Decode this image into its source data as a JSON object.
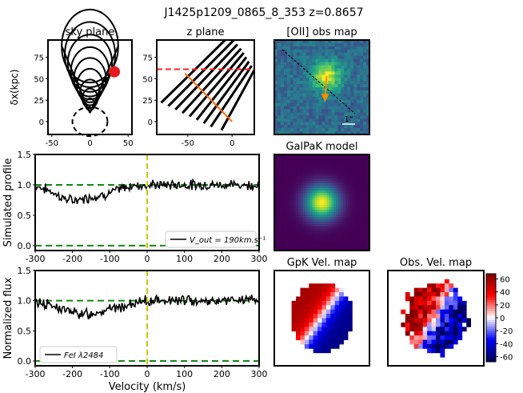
{
  "figure": {
    "title": "J1425p1209_0865_8_353 z=0.8657"
  },
  "chart_data": [
    {
      "id": "sky",
      "type": "scatter",
      "title": "sky plane",
      "ylabel": "δx(kpc)",
      "xlim": [
        -55,
        55
      ],
      "ylim": [
        -15,
        95
      ],
      "xticks": [
        -50,
        0,
        50
      ],
      "yticks": [
        0,
        25,
        50,
        75
      ],
      "cone_apex": [
        0,
        10
      ],
      "ellipse_centers_y": [
        88,
        78,
        68,
        58,
        50,
        42,
        34,
        27,
        20
      ],
      "ellipse_half_widths": [
        37,
        33,
        29,
        25,
        21,
        17,
        13,
        10,
        6
      ],
      "dashed_ellipse": {
        "cx": 0,
        "cy": 0,
        "rx": 23,
        "ry": 17
      },
      "galaxy_marker": {
        "x": 32,
        "y": 58,
        "r": 7,
        "color": "#e41a1c"
      }
    },
    {
      "id": "z",
      "type": "line",
      "title": "z plane",
      "xlim": [
        -85,
        25
      ],
      "ylim": [
        -15,
        95
      ],
      "xticks": [
        -50,
        0
      ],
      "yticks": [
        0,
        25,
        50,
        75
      ],
      "stripes": [
        [
          [
            -80,
            22
          ],
          [
            -3,
            100
          ]
        ],
        [
          [
            -72,
            18
          ],
          [
            2,
            95
          ]
        ],
        [
          [
            -64,
            14
          ],
          [
            6,
            90
          ]
        ],
        [
          [
            -56,
            10
          ],
          [
            10,
            85
          ]
        ],
        [
          [
            -48,
            6
          ],
          [
            13,
            80
          ]
        ],
        [
          [
            -40,
            2
          ],
          [
            16,
            75
          ]
        ],
        [
          [
            -32,
            -2
          ],
          [
            19,
            70
          ]
        ],
        [
          [
            -24,
            -6
          ],
          [
            22,
            65
          ]
        ],
        [
          [
            -12,
            -10
          ],
          [
            25,
            60
          ]
        ]
      ],
      "los": {
        "x1": -53,
        "y1": 56,
        "x2": 0,
        "y2": 0,
        "color": "#ff6a00"
      },
      "red_dashed_y": 61
    },
    {
      "id": "obs_map",
      "type": "heatmap",
      "title": "[OII] obs map",
      "scale_label": "1\"",
      "grid": 30,
      "center": [
        16,
        11
      ],
      "sigma": 3.2,
      "arrow_color": "#ff8c00"
    },
    {
      "id": "model",
      "type": "heatmap",
      "title": "GalPaK model",
      "center": [
        0.5,
        0.5
      ],
      "sigma": 0.12
    },
    {
      "id": "profile",
      "type": "line",
      "xlabel": "",
      "ylabel": "Simulated profile",
      "xlim": [
        -300,
        300
      ],
      "ylim": [
        -0.08,
        1.5
      ],
      "xticks": [
        -300,
        -200,
        -100,
        0,
        100,
        200,
        300
      ],
      "yticks": [
        0.0,
        0.5,
        1.0,
        1.5
      ],
      "hlines": [
        1.0,
        0.0
      ],
      "vline": 0,
      "legend": "V_out = 190km.s⁻¹",
      "legend_location": "bottom-right",
      "absorption": [
        {
          "center": -200,
          "width": 45,
          "depth": 0.25
        },
        {
          "center": -110,
          "width": 35,
          "depth": 0.12
        }
      ],
      "noise": 0.07,
      "seed": 7
    },
    {
      "id": "flux",
      "type": "line",
      "xlabel": "Velocity (km/s)",
      "ylabel": "Normalized flux",
      "xlim": [
        -300,
        300
      ],
      "ylim": [
        -0.08,
        1.5
      ],
      "xticks": [
        -300,
        -200,
        -100,
        0,
        100,
        200,
        300
      ],
      "yticks": [
        0.0,
        0.5,
        1.0,
        1.5
      ],
      "hlines": [
        1.0,
        0.0
      ],
      "vline": 0,
      "legend": "FeI λ2484",
      "legend_location": "bottom-left",
      "absorption": [
        {
          "center": -170,
          "width": 60,
          "depth": 0.22
        },
        {
          "center": -60,
          "width": 25,
          "depth": 0.06
        }
      ],
      "noise": 0.075,
      "seed": 13
    },
    {
      "id": "gpk_vel",
      "type": "heatmap",
      "title": "GpK Vel. map",
      "angle": 35,
      "vmax": 65
    },
    {
      "id": "obs_vel",
      "type": "heatmap",
      "title": "Obs. Vel. map",
      "angle": 30,
      "vmax": 65,
      "noisy": true
    },
    {
      "id": "colorbar",
      "type": "heatmap",
      "ticks": [
        60,
        40,
        20,
        0,
        -20,
        -40,
        -60
      ],
      "vmin": -68,
      "vmax": 68
    }
  ]
}
